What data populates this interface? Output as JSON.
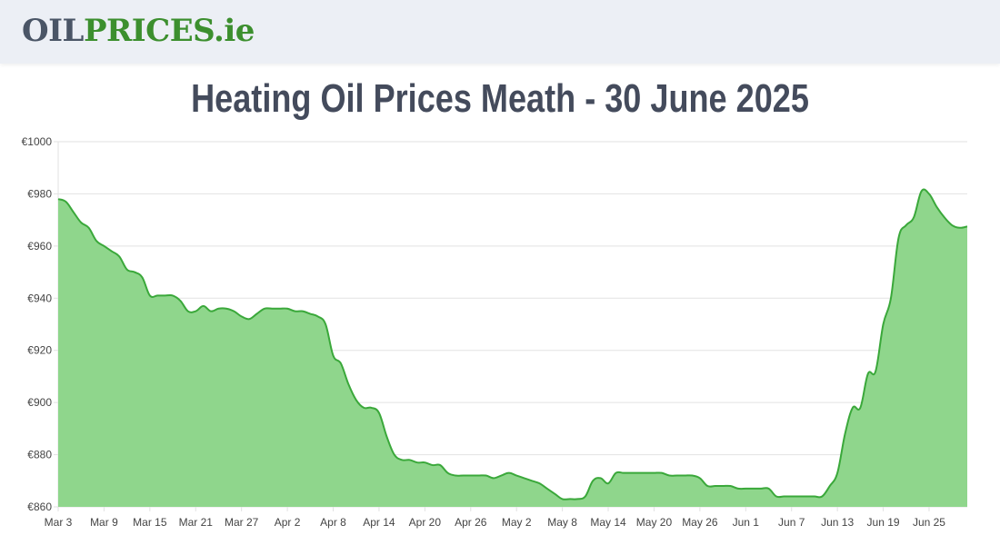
{
  "header": {
    "logo": {
      "part1": "OIL",
      "part2": "PRICES",
      "part3": ".ie"
    }
  },
  "page": {
    "title": "Heating Oil Prices Meath - 30 June 2025"
  },
  "colors": {
    "line": "#3aa83a",
    "fill": "#8fd68c",
    "grid": "#e2e2e2",
    "header_bg": "#eceff5",
    "title": "#444b5c"
  },
  "chart_data": {
    "type": "area",
    "title": "",
    "xlabel": "",
    "ylabel": "",
    "ylim": [
      860,
      1000
    ],
    "yticks": [
      860,
      880,
      900,
      920,
      940,
      960,
      980,
      1000
    ],
    "ytick_labels": [
      "€860",
      "€880",
      "€900",
      "€920",
      "€940",
      "€960",
      "€980",
      "€1000"
    ],
    "grid": true,
    "x_tick_labels": [
      "Mar 3",
      "Mar 9",
      "Mar 15",
      "Mar 21",
      "Mar 27",
      "Apr 2",
      "Apr 8",
      "Apr 14",
      "Apr 20",
      "Apr 26",
      "May 2",
      "May 8",
      "May 14",
      "May 20",
      "May 26",
      "Jun 1",
      "Jun 7",
      "Jun 13",
      "Jun 19",
      "Jun 25"
    ],
    "x_tick_days": [
      0,
      6,
      12,
      18,
      24,
      30,
      36,
      42,
      48,
      54,
      60,
      66,
      72,
      78,
      84,
      90,
      96,
      102,
      108,
      114
    ],
    "x_range_days": [
      0,
      119
    ],
    "series": [
      {
        "x_days": [
          0,
          1,
          2,
          3,
          4,
          5,
          6,
          7,
          8,
          9,
          10,
          11,
          12,
          13,
          14,
          15,
          16,
          17,
          18,
          19,
          20,
          21,
          22,
          23,
          24,
          25,
          26,
          27,
          28,
          29,
          30,
          31,
          32,
          33,
          34,
          35,
          36,
          37,
          38,
          39,
          40,
          41,
          42,
          43,
          44,
          45,
          46,
          47,
          48,
          49,
          50,
          51,
          52,
          53,
          54,
          55,
          56,
          57,
          58,
          59,
          60,
          61,
          62,
          63,
          64,
          65,
          66,
          67,
          68,
          69,
          70,
          71,
          72,
          73,
          74,
          75,
          76,
          77,
          78,
          79,
          80,
          81,
          82,
          83,
          84,
          85,
          86,
          87,
          88,
          89,
          90,
          91,
          92,
          93,
          94,
          95,
          96,
          97,
          98,
          99,
          100,
          101,
          102,
          103,
          104,
          105,
          106,
          107,
          108,
          109,
          110,
          111,
          112,
          113,
          114,
          115,
          116,
          117,
          118,
          119
        ],
        "values": [
          978,
          977,
          973,
          969,
          967,
          962,
          960,
          958,
          956,
          951,
          950,
          948,
          941,
          941,
          941,
          941,
          939,
          935,
          935,
          937,
          935,
          936,
          936,
          935,
          933,
          932,
          934,
          936,
          936,
          936,
          936,
          935,
          935,
          934,
          933,
          930,
          918,
          915,
          907,
          901,
          898,
          898,
          896,
          887,
          880,
          878,
          878,
          877,
          877,
          876,
          876,
          873,
          872,
          872,
          872,
          872,
          872,
          871,
          872,
          873,
          872,
          871,
          870,
          869,
          867,
          865,
          863,
          863,
          863,
          864,
          870,
          871,
          869,
          873,
          873,
          873,
          873,
          873,
          873,
          873,
          872,
          872,
          872,
          872,
          871,
          868,
          868,
          868,
          868,
          867,
          867,
          867,
          867,
          867,
          864,
          864,
          864,
          864,
          864,
          864,
          864,
          868,
          873,
          888,
          898,
          898,
          911,
          912,
          930,
          940,
          963,
          968,
          971,
          981,
          980,
          975,
          971,
          968,
          967,
          967.5
        ]
      }
    ]
  }
}
